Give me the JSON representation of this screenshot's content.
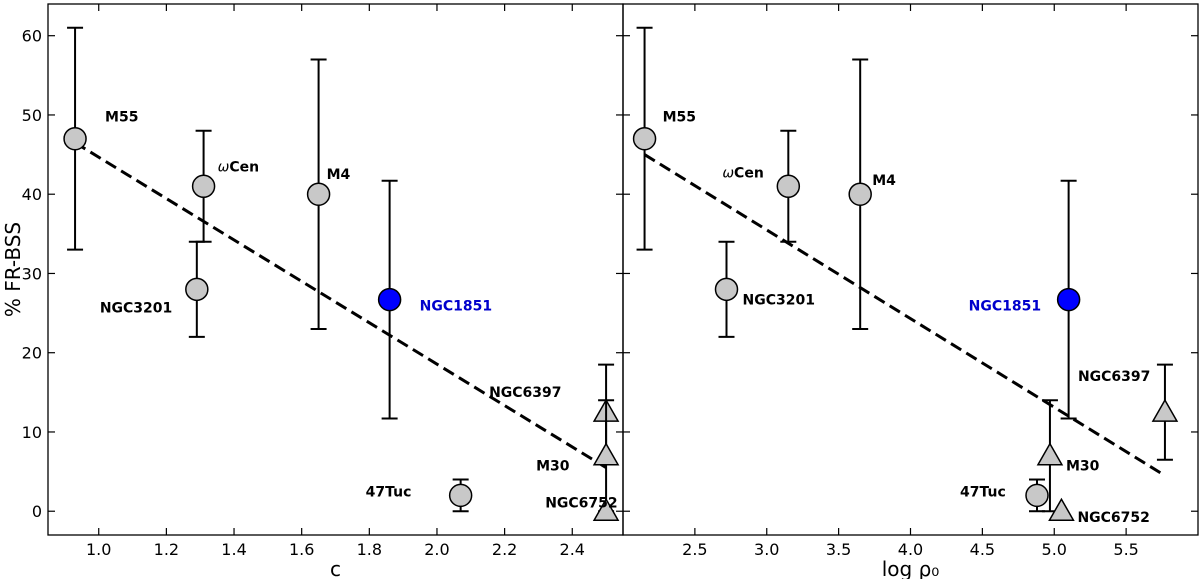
{
  "chart_data": [
    {
      "type": "scatter",
      "xlabel": "c",
      "ylabel": "% FR-BSS",
      "xlim": [
        0.85,
        2.55
      ],
      "ylim": [
        -3,
        64
      ],
      "xticks": [
        1.0,
        1.2,
        1.4,
        1.6,
        1.8,
        2.0,
        2.2,
        2.4
      ],
      "xtick_labels": [
        "1.0",
        "1.2",
        "1.4",
        "1.6",
        "1.8",
        "2.0",
        "2.2",
        "2.4"
      ],
      "yticks": [
        0,
        10,
        20,
        30,
        40,
        50,
        60
      ],
      "ytick_labels": [
        "0",
        "10",
        "20",
        "30",
        "40",
        "50",
        "60"
      ],
      "fit_line": {
        "x": [
          0.93,
          2.5
        ],
        "y": [
          46.5,
          5.5
        ],
        "style": "dashed"
      },
      "points": [
        {
          "label": "M55",
          "x": 0.93,
          "y": 47,
          "err_low": 33,
          "err_high": 61,
          "marker": "circle",
          "color": "#c8c8c8",
          "label_color": "#000000"
        },
        {
          "label": "ωCen",
          "x": 1.31,
          "y": 41,
          "err_low": 34,
          "err_high": 48,
          "marker": "circle",
          "color": "#c8c8c8",
          "label_color": "#000000"
        },
        {
          "label": "NGC3201",
          "x": 1.29,
          "y": 28,
          "err_low": 22,
          "err_high": 34,
          "marker": "circle",
          "color": "#c8c8c8",
          "label_color": "#000000"
        },
        {
          "label": "M4",
          "x": 1.65,
          "y": 40,
          "err_low": 23,
          "err_high": 57,
          "marker": "circle",
          "color": "#c8c8c8",
          "label_color": "#000000"
        },
        {
          "label": "NGC1851",
          "x": 1.86,
          "y": 26.7,
          "err_low": 11.7,
          "err_high": 41.7,
          "marker": "circle",
          "color": "#0000ff",
          "label_color": "#0000cc"
        },
        {
          "label": "NGC6397",
          "x": 2.5,
          "y": 12.5,
          "err_low": 6.5,
          "err_high": 18.5,
          "marker": "triangle",
          "color": "#c8c8c8",
          "label_color": "#000000"
        },
        {
          "label": "M30",
          "x": 2.5,
          "y": 7,
          "err_low": 0,
          "err_high": 14,
          "marker": "triangle",
          "color": "#c8c8c8",
          "label_color": "#000000"
        },
        {
          "label": "",
          "x": 2.5,
          "y": 0,
          "err_low": 0,
          "err_high": 0,
          "marker": "triangle",
          "color": "#c8c8c8",
          "label_color": "#000000"
        },
        {
          "label": "47Tuc",
          "x": 2.07,
          "y": 2,
          "err_low": 0,
          "err_high": 4,
          "marker": "circle",
          "color": "#c8c8c8",
          "label_color": "#000000"
        }
      ],
      "extra_labels": [
        {
          "text": "NGC6752",
          "x": 2.32,
          "y": 0.5
        }
      ]
    },
    {
      "type": "scatter",
      "xlabel": "log ρ₀",
      "xlim": [
        2.0,
        6.0
      ],
      "ylim": [
        -3,
        64
      ],
      "xticks": [
        2.5,
        3.0,
        3.5,
        4.0,
        4.5,
        5.0,
        5.5
      ],
      "xtick_labels": [
        "2.5",
        "3.0",
        "3.5",
        "4.0",
        "4.5",
        "5.0",
        "5.5"
      ],
      "fit_line": {
        "x": [
          2.15,
          5.77
        ],
        "y": [
          45,
          4.5
        ],
        "style": "dashed"
      },
      "points": [
        {
          "label": "M55",
          "x": 2.15,
          "y": 47,
          "err_low": 33,
          "err_high": 61,
          "marker": "circle",
          "color": "#c8c8c8",
          "label_color": "#000000"
        },
        {
          "label": "ωCen",
          "x": 3.15,
          "y": 41,
          "err_low": 34,
          "err_high": 48,
          "marker": "circle",
          "color": "#c8c8c8",
          "label_color": "#000000"
        },
        {
          "label": "NGC3201",
          "x": 2.72,
          "y": 28,
          "err_low": 22,
          "err_high": 34,
          "marker": "circle",
          "color": "#c8c8c8",
          "label_color": "#000000"
        },
        {
          "label": "M4",
          "x": 3.65,
          "y": 40,
          "err_low": 23,
          "err_high": 57,
          "marker": "circle",
          "color": "#c8c8c8",
          "label_color": "#000000"
        },
        {
          "label": "NGC1851",
          "x": 5.1,
          "y": 26.7,
          "err_low": 11.7,
          "err_high": 41.7,
          "marker": "circle",
          "color": "#0000ff",
          "label_color": "#0000cc"
        },
        {
          "label": "NGC6397",
          "x": 5.77,
          "y": 12.5,
          "err_low": 6.5,
          "err_high": 18.5,
          "marker": "triangle",
          "color": "#c8c8c8",
          "label_color": "#000000"
        },
        {
          "label": "M30",
          "x": 4.97,
          "y": 7,
          "err_low": 0,
          "err_high": 14,
          "marker": "triangle",
          "color": "#c8c8c8",
          "label_color": "#000000"
        },
        {
          "label": "NGC6752",
          "x": 5.05,
          "y": 0,
          "err_low": 0,
          "err_high": 0,
          "marker": "triangle",
          "color": "#c8c8c8",
          "label_color": "#000000"
        },
        {
          "label": "47Tuc",
          "x": 4.88,
          "y": 2,
          "err_low": 0,
          "err_high": 4,
          "marker": "circle",
          "color": "#c8c8c8",
          "label_color": "#000000"
        }
      ],
      "extra_labels": []
    }
  ]
}
